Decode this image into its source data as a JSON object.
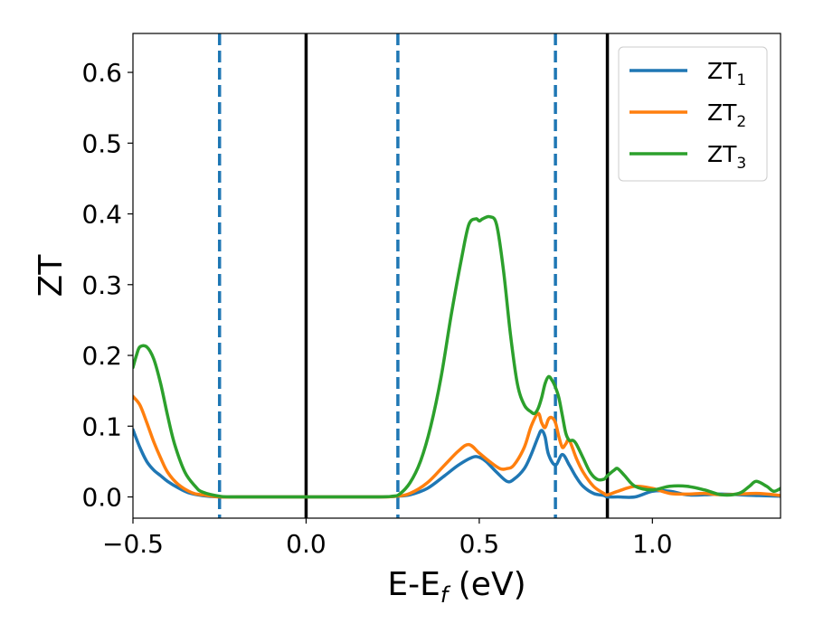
{
  "chart_data": {
    "type": "line",
    "xlabel": "E-E",
    "xlabel_sub": "f",
    "xlabel_unit": " (eV)",
    "ylabel": "ZT",
    "xlim": [
      -0.5,
      1.37
    ],
    "ylim": [
      -0.03,
      0.655
    ],
    "xticks": [
      -0.5,
      0.0,
      0.5,
      1.0
    ],
    "xtick_labels": [
      "−0.5",
      "0.0",
      "0.5",
      "1.0"
    ],
    "yticks": [
      0.0,
      0.1,
      0.2,
      0.3,
      0.4,
      0.5,
      0.6
    ],
    "ytick_labels": [
      "0.0",
      "0.1",
      "0.2",
      "0.3",
      "0.4",
      "0.5",
      "0.6"
    ],
    "grid": false,
    "legend_position": "top-right",
    "vlines_solid": [
      0.0,
      0.87
    ],
    "vlines_dashed": [
      -0.25,
      0.265,
      0.72
    ],
    "series": [
      {
        "name": "ZT",
        "name_sub": "1",
        "color": "#1f77b4",
        "x": [
          -0.5,
          -0.48,
          -0.46,
          -0.44,
          -0.42,
          -0.4,
          -0.37,
          -0.34,
          -0.3,
          -0.25,
          -0.2,
          0.0,
          0.2,
          0.26,
          0.3,
          0.35,
          0.4,
          0.44,
          0.48,
          0.5,
          0.52,
          0.55,
          0.58,
          0.6,
          0.63,
          0.65,
          0.67,
          0.68,
          0.69,
          0.7,
          0.72,
          0.74,
          0.76,
          0.78,
          0.8,
          0.83,
          0.86,
          0.87,
          0.9,
          0.95,
          1.0,
          1.05,
          1.1,
          1.15,
          1.2,
          1.3,
          1.37
        ],
        "y": [
          0.095,
          0.07,
          0.05,
          0.038,
          0.03,
          0.022,
          0.013,
          0.006,
          0.002,
          0.0,
          0.0,
          0.0,
          0.0,
          0.001,
          0.003,
          0.012,
          0.03,
          0.045,
          0.056,
          0.056,
          0.05,
          0.035,
          0.022,
          0.025,
          0.04,
          0.06,
          0.085,
          0.094,
          0.085,
          0.06,
          0.045,
          0.06,
          0.045,
          0.028,
          0.015,
          0.005,
          0.002,
          0.0,
          0.0,
          0.0,
          0.008,
          0.008,
          0.003,
          0.003,
          0.004,
          0.002,
          0.001
        ]
      },
      {
        "name": "ZT",
        "name_sub": "2",
        "color": "#ff7f0e",
        "x": [
          -0.5,
          -0.48,
          -0.46,
          -0.44,
          -0.42,
          -0.4,
          -0.37,
          -0.33,
          -0.3,
          -0.25,
          -0.2,
          0.0,
          0.2,
          0.26,
          0.3,
          0.35,
          0.4,
          0.44,
          0.47,
          0.5,
          0.53,
          0.56,
          0.58,
          0.6,
          0.63,
          0.65,
          0.67,
          0.68,
          0.69,
          0.7,
          0.71,
          0.72,
          0.73,
          0.74,
          0.75,
          0.76,
          0.78,
          0.8,
          0.83,
          0.86,
          0.87,
          0.9,
          0.95,
          1.0,
          1.05,
          1.1,
          1.15,
          1.2,
          1.3,
          1.37
        ],
        "y": [
          0.142,
          0.13,
          0.105,
          0.078,
          0.055,
          0.035,
          0.018,
          0.006,
          0.003,
          0.0,
          0.0,
          0.0,
          0.0,
          0.001,
          0.005,
          0.02,
          0.045,
          0.065,
          0.074,
          0.062,
          0.05,
          0.04,
          0.04,
          0.045,
          0.07,
          0.1,
          0.118,
          0.105,
          0.098,
          0.11,
          0.112,
          0.105,
          0.085,
          0.07,
          0.075,
          0.08,
          0.055,
          0.035,
          0.015,
          0.005,
          0.003,
          0.008,
          0.015,
          0.012,
          0.005,
          0.004,
          0.005,
          0.003,
          0.005,
          0.002
        ]
      },
      {
        "name": "ZT",
        "name_sub": "3",
        "color": "#2ca02c",
        "x": [
          -0.5,
          -0.49,
          -0.48,
          -0.46,
          -0.44,
          -0.42,
          -0.4,
          -0.38,
          -0.35,
          -0.32,
          -0.3,
          -0.25,
          -0.2,
          0.0,
          0.2,
          0.25,
          0.27,
          0.3,
          0.33,
          0.36,
          0.39,
          0.42,
          0.45,
          0.47,
          0.49,
          0.5,
          0.51,
          0.53,
          0.55,
          0.57,
          0.59,
          0.61,
          0.63,
          0.65,
          0.66,
          0.67,
          0.68,
          0.69,
          0.7,
          0.71,
          0.72,
          0.73,
          0.74,
          0.75,
          0.76,
          0.77,
          0.78,
          0.8,
          0.82,
          0.84,
          0.86,
          0.87,
          0.89,
          0.9,
          0.92,
          0.95,
          1.0,
          1.05,
          1.1,
          1.15,
          1.2,
          1.25,
          1.28,
          1.3,
          1.33,
          1.35,
          1.37
        ],
        "y": [
          0.183,
          0.2,
          0.212,
          0.212,
          0.195,
          0.16,
          0.115,
          0.075,
          0.035,
          0.015,
          0.007,
          0.001,
          0.0,
          0.0,
          0.0,
          0.001,
          0.004,
          0.02,
          0.05,
          0.1,
          0.17,
          0.26,
          0.34,
          0.385,
          0.393,
          0.39,
          0.393,
          0.396,
          0.385,
          0.32,
          0.23,
          0.16,
          0.13,
          0.12,
          0.118,
          0.125,
          0.14,
          0.16,
          0.17,
          0.165,
          0.155,
          0.14,
          0.115,
          0.09,
          0.08,
          0.08,
          0.075,
          0.055,
          0.035,
          0.025,
          0.025,
          0.03,
          0.038,
          0.04,
          0.03,
          0.015,
          0.01,
          0.015,
          0.015,
          0.01,
          0.003,
          0.005,
          0.015,
          0.022,
          0.015,
          0.008,
          0.012
        ]
      }
    ]
  }
}
